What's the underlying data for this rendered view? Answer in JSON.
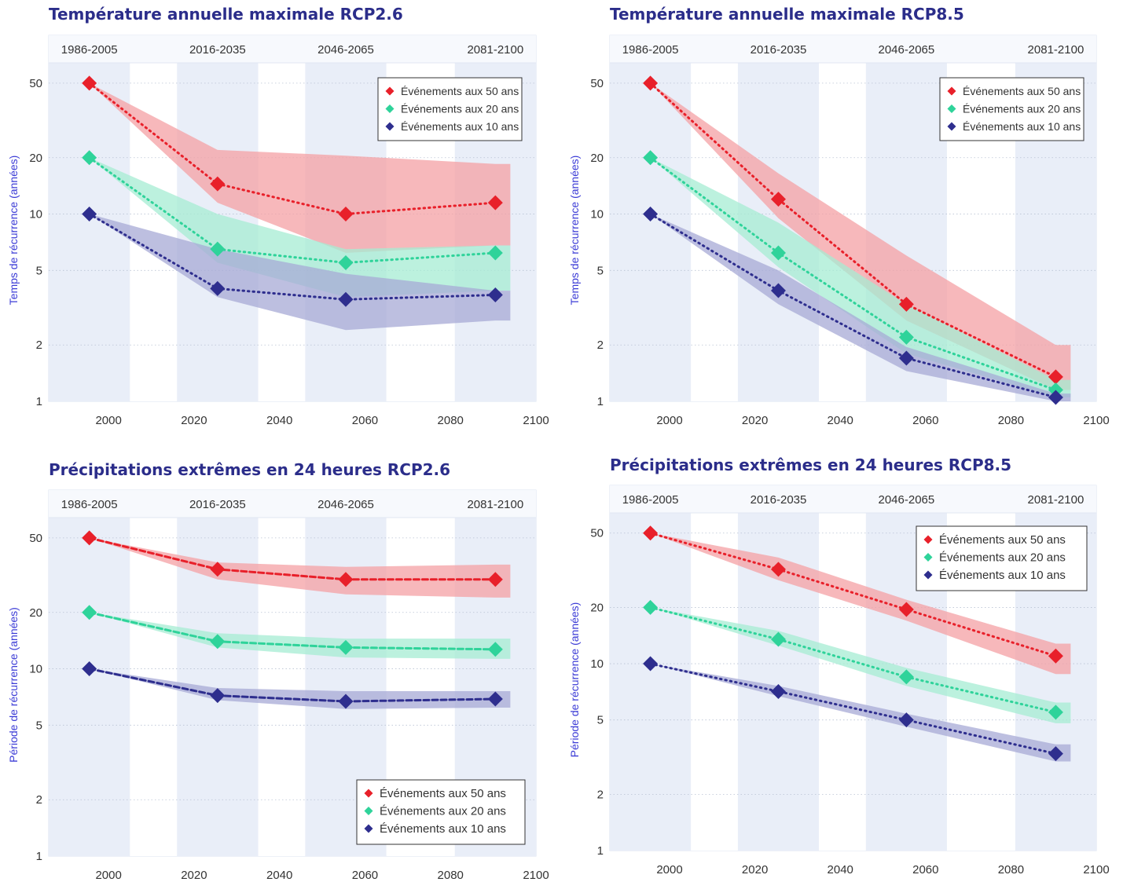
{
  "colors": {
    "title": "#2b2d8a",
    "ylabel": "#3b3bd6",
    "period_shade": "#e9eef8",
    "plot_bg": "#f4f7fc",
    "series": [
      "#e8202a",
      "#2fd39a",
      "#2e2e8e"
    ],
    "bands": [
      "#f4a0a4",
      "#a5ecd3",
      "#a7a9d6"
    ]
  },
  "chart_data": [
    {
      "type": "line",
      "title": "Température annuelle maximale RCP2.6",
      "ylabel": "Temps de récurrence (années)",
      "xlabel": "",
      "yscale": "log",
      "xlim": [
        1986,
        2100
      ],
      "ylim": [
        1,
        90
      ],
      "xticks": [
        2000,
        2020,
        2040,
        2060,
        2080,
        2100
      ],
      "yticks": [
        1,
        2,
        5,
        10,
        20,
        50
      ],
      "periods": [
        "1986-2005",
        "2016-2035",
        "2046-2065",
        "2081-2100"
      ],
      "line_style": "dotted",
      "legend_position": "top-right",
      "x": [
        1995.5,
        2025.5,
        2055.5,
        2090.5
      ],
      "series": [
        {
          "name": "Événements aux 50 ans",
          "values": [
            50,
            14.5,
            10,
            11.5
          ],
          "lower": [
            50,
            11.5,
            6.2,
            6.8
          ],
          "upper": [
            50,
            22,
            20.5,
            18.5
          ]
        },
        {
          "name": "Événements aux 20 ans",
          "values": [
            20,
            6.5,
            5.5,
            6.2
          ],
          "lower": [
            20,
            5.5,
            3.6,
            3.9
          ],
          "upper": [
            20,
            10,
            6.5,
            6.8
          ]
        },
        {
          "name": "Événements aux 10 ans",
          "values": [
            10,
            4,
            3.5,
            3.7
          ],
          "lower": [
            10,
            3.6,
            2.4,
            2.7
          ],
          "upper": [
            10,
            6.5,
            4.8,
            3.9
          ]
        }
      ]
    },
    {
      "type": "line",
      "title": "Température annuelle maximale RCP8.5",
      "ylabel": "Temps de récurrence (années)",
      "xlabel": "",
      "yscale": "log",
      "xlim": [
        1986,
        2100
      ],
      "ylim": [
        1,
        90
      ],
      "xticks": [
        2000,
        2020,
        2040,
        2060,
        2080,
        2100
      ],
      "yticks": [
        1,
        2,
        5,
        10,
        20,
        50
      ],
      "periods": [
        "1986-2005",
        "2016-2035",
        "2046-2065",
        "2081-2100"
      ],
      "line_style": "dotted",
      "legend_position": "top-right",
      "x": [
        1995.5,
        2025.5,
        2055.5,
        2090.5
      ],
      "series": [
        {
          "name": "Événements aux 50 ans",
          "values": [
            50,
            12,
            3.3,
            1.35
          ],
          "lower": [
            50,
            9.5,
            2.7,
            1.15
          ],
          "upper": [
            50,
            16.5,
            6,
            2
          ]
        },
        {
          "name": "Événements aux 20 ans",
          "values": [
            20,
            6.2,
            2.2,
            1.15
          ],
          "lower": [
            20,
            5.2,
            1.8,
            1.05
          ],
          "upper": [
            20,
            9,
            3.3,
            1.3
          ]
        },
        {
          "name": "Événements aux 10 ans",
          "values": [
            10,
            3.9,
            1.7,
            1.05
          ],
          "lower": [
            10,
            3.3,
            1.45,
            1
          ],
          "upper": [
            10,
            5,
            1.95,
            1.1
          ]
        }
      ]
    },
    {
      "type": "line",
      "title": "Précipitations extrêmes en 24 heures RCP2.6",
      "ylabel": "Période de récurrence (années)",
      "xlabel": "",
      "yscale": "log",
      "xlim": [
        1986,
        2100
      ],
      "ylim": [
        1,
        90
      ],
      "xticks": [
        2000,
        2020,
        2040,
        2060,
        2080,
        2100
      ],
      "yticks": [
        1,
        2,
        5,
        10,
        20,
        50
      ],
      "periods": [
        "1986-2005",
        "2016-2035",
        "2046-2065",
        "2081-2100"
      ],
      "line_style": "dashed",
      "legend_position": "bottom-right",
      "x": [
        1995.5,
        2025.5,
        2055.5,
        2090.5
      ],
      "series": [
        {
          "name": "Événements aux 50 ans",
          "values": [
            50,
            34,
            30,
            30
          ],
          "lower": [
            50,
            30,
            25,
            24
          ],
          "upper": [
            50,
            37,
            35,
            36
          ]
        },
        {
          "name": "Événements aux 20 ans",
          "values": [
            20,
            14,
            13,
            12.7
          ],
          "lower": [
            20,
            13,
            11.5,
            11.3
          ],
          "upper": [
            20,
            15.5,
            14.5,
            14.5
          ]
        },
        {
          "name": "Événements aux 10 ans",
          "values": [
            10,
            7.2,
            6.7,
            6.9
          ],
          "lower": [
            10,
            6.8,
            6.1,
            6.2
          ],
          "upper": [
            10,
            7.9,
            7.6,
            7.6
          ]
        }
      ]
    },
    {
      "type": "line",
      "title": "Précipitations extrêmes en 24 heures RCP8.5",
      "ylabel": "Période de récurrence (années)",
      "xlabel": "",
      "yscale": "log",
      "xlim": [
        1986,
        2100
      ],
      "ylim": [
        1,
        90
      ],
      "xticks": [
        2000,
        2020,
        2040,
        2060,
        2080,
        2100
      ],
      "yticks": [
        1,
        2,
        5,
        10,
        20,
        50
      ],
      "periods": [
        "1986-2005",
        "2016-2035",
        "2046-2065",
        "2081-2100"
      ],
      "line_style": "dotted",
      "legend_position": "top-right",
      "x": [
        1995.5,
        2025.5,
        2055.5,
        2090.5
      ],
      "series": [
        {
          "name": "Événements aux 50 ans",
          "values": [
            50,
            32,
            19.5,
            11
          ],
          "lower": [
            50,
            28,
            17,
            8.8
          ],
          "upper": [
            50,
            37,
            22,
            12.8
          ]
        },
        {
          "name": "Événements aux 20 ans",
          "values": [
            20,
            13.5,
            8.5,
            5.5
          ],
          "lower": [
            20,
            12.5,
            7.6,
            4.8
          ],
          "upper": [
            20,
            15,
            9.5,
            6.2
          ]
        },
        {
          "name": "Événements aux 10 ans",
          "values": [
            10,
            7.1,
            5,
            3.3
          ],
          "lower": [
            10,
            6.7,
            4.6,
            3
          ],
          "upper": [
            10,
            7.6,
            5.4,
            3.7
          ]
        }
      ]
    }
  ]
}
